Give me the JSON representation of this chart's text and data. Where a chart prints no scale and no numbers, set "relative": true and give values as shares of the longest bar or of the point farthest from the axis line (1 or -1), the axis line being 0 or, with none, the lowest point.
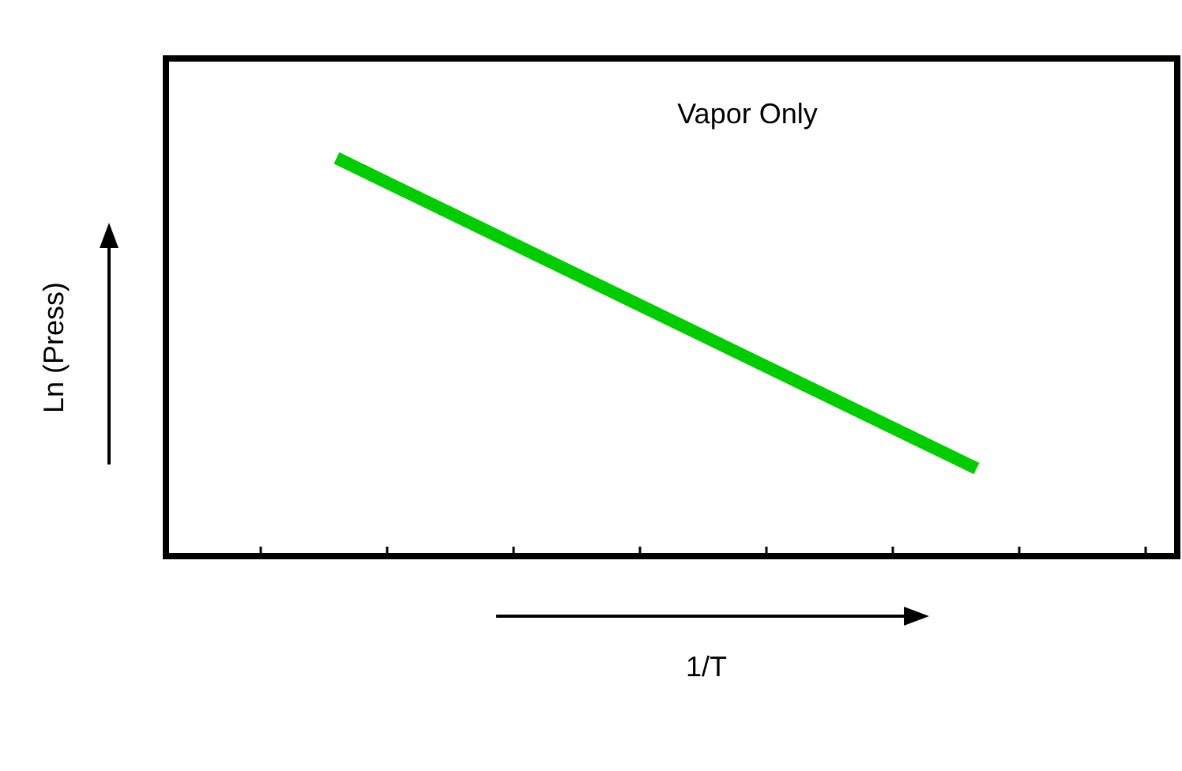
{
  "chart_data": {
    "type": "line",
    "relative": true,
    "xlabel": "1/T",
    "ylabel": "Ln (Press)",
    "annotations": [
      "Vapor Only"
    ],
    "categories": [
      null,
      null
    ],
    "grid": false,
    "marker": "none",
    "line_style": "solid",
    "series": [
      {
        "color": "#00cc00",
        "values": [
          1,
          0.22
        ]
      }
    ]
  }
}
